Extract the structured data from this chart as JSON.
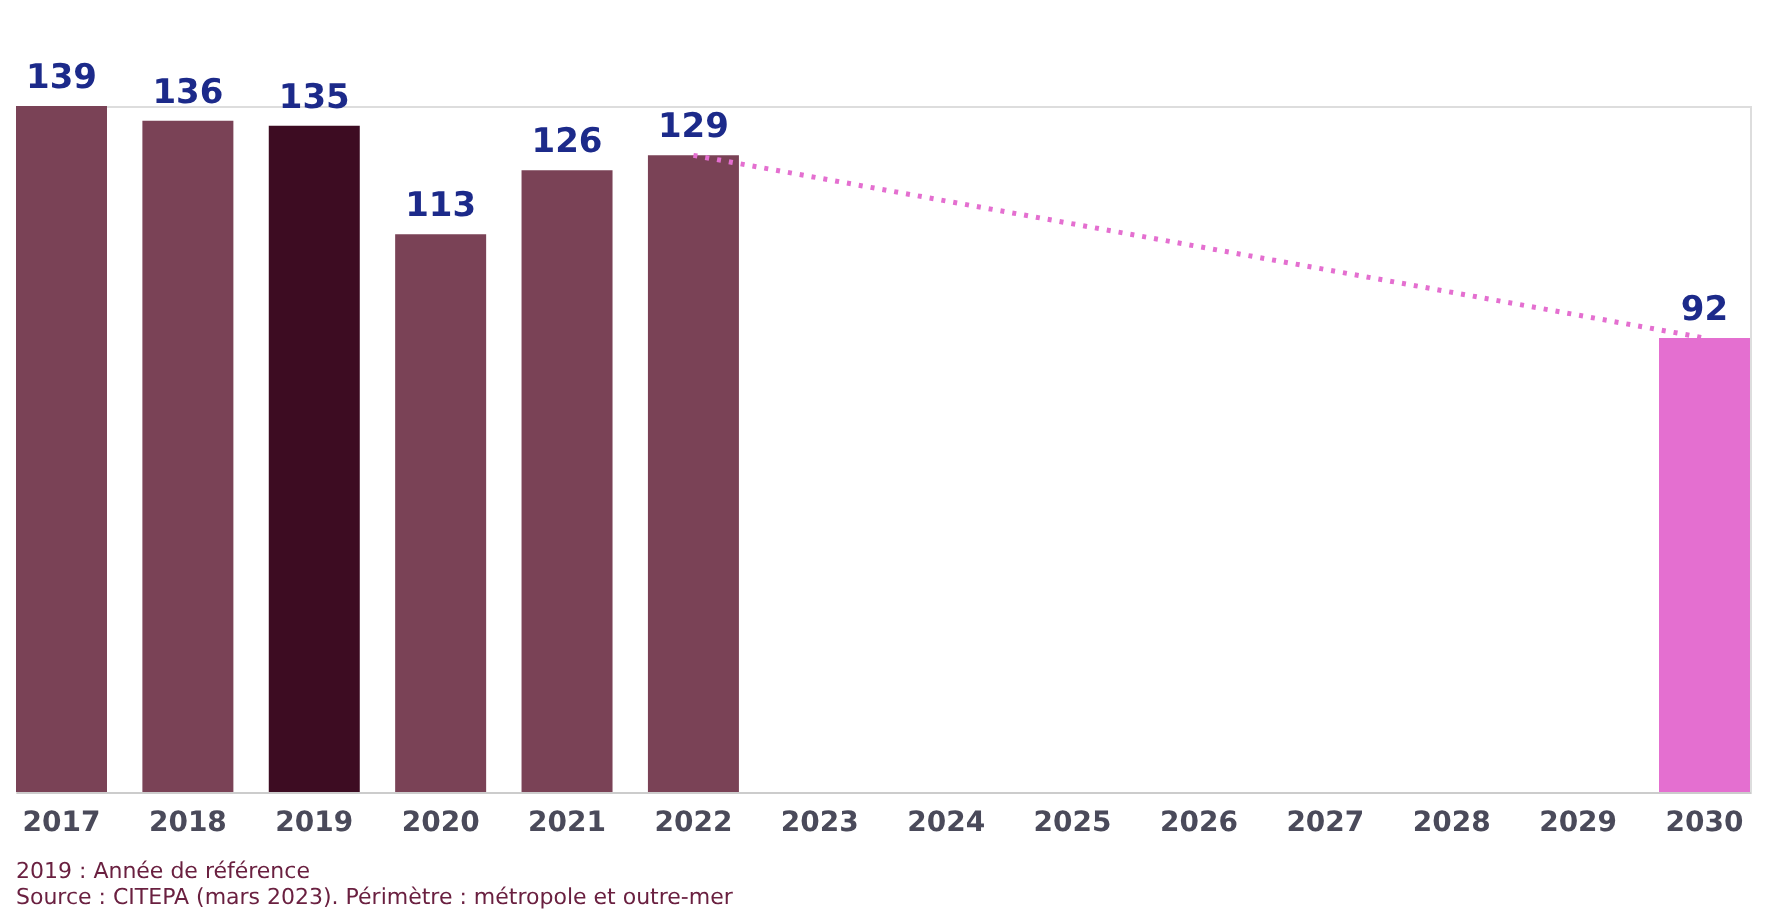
{
  "chart_data": {
    "type": "bar",
    "categories": [
      "2017",
      "2018",
      "2019",
      "2020",
      "2021",
      "2022",
      "2023",
      "2024",
      "2025",
      "2026",
      "2027",
      "2028",
      "2029",
      "2030"
    ],
    "series": [
      {
        "values": [
          139,
          136,
          135,
          113,
          126,
          129,
          null,
          null,
          null,
          null,
          null,
          null,
          null,
          92
        ],
        "colors": [
          "#7a4256",
          "#7a4256",
          "#3d0c22",
          "#7a4256",
          "#7a4256",
          "#7a4256",
          "#7a4256",
          "#7a4256",
          "#7a4256",
          "#7a4256",
          "#7a4256",
          "#7a4256",
          "#7a4256",
          "#e46fd0"
        ]
      },
      {
        "type": "line",
        "color": "#e46fd0",
        "line_style": "dotted",
        "values": [
          null,
          null,
          null,
          null,
          null,
          129,
          null,
          null,
          null,
          null,
          null,
          null,
          null,
          92
        ],
        "value_labels": [
          null,
          null,
          null,
          null,
          null,
          null,
          null,
          null,
          null,
          null,
          null,
          null,
          null,
          null
        ]
      }
    ],
    "data_labels": true,
    "grid": false,
    "annotations": [
      "2019 : Année de référence",
      "Source : CITEPA (mars 2023). Périmètre : métropole et outre-mer"
    ]
  }
}
